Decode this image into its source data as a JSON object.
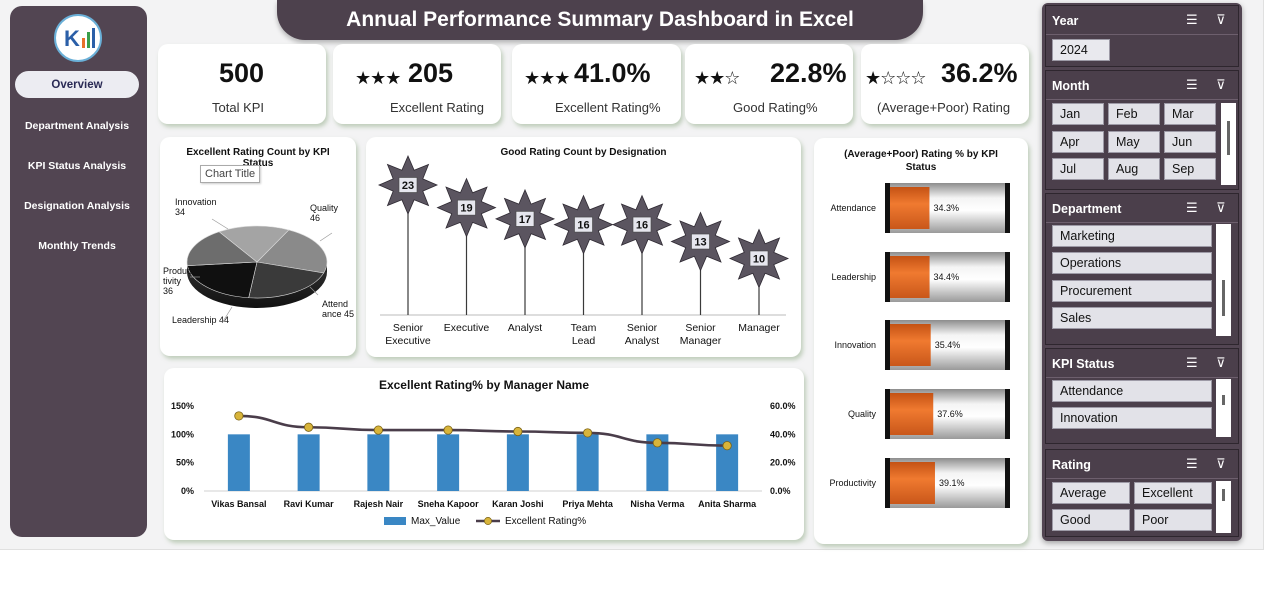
{
  "title": "Annual Performance Summary Dashboard in Excel",
  "nav": {
    "items": [
      "Overview",
      "Department Analysis",
      "KPI Status Analysis",
      "Designation Analysis",
      "Monthly Trends"
    ],
    "active": "Overview"
  },
  "kpis": [
    {
      "stars": "",
      "value": "500",
      "label": "Total KPI"
    },
    {
      "stars": "★★★",
      "value": "205",
      "label": "Excellent Rating"
    },
    {
      "stars": "★★★",
      "value": "41.0%",
      "label": "Excellent Rating%"
    },
    {
      "stars": "★★☆",
      "value": "22.8%",
      "label": "Good Rating%"
    },
    {
      "stars": "★☆☆☆",
      "value": "36.2%",
      "label": "(Average+Poor) Rating"
    }
  ],
  "tooltip": "Chart Title",
  "chart_data": [
    {
      "type": "pie",
      "title": "Excellent Rating Count by KPI Status",
      "categories": [
        "Quality",
        "Attendance",
        "Leadership",
        "Productivity",
        "Innovation"
      ],
      "values": [
        46,
        45,
        44,
        36,
        34
      ],
      "data_labels": [
        "Quality 46",
        "Attend ance 45",
        "Leadership 44",
        "Produc tivity 36",
        "Innovation 34"
      ]
    },
    {
      "type": "bar",
      "title": "Good Rating Count by Designation",
      "categories": [
        "Senior Executive",
        "Executive",
        "Analyst",
        "Team Lead",
        "Senior Analyst",
        "Senior Manager",
        "Manager"
      ],
      "values": [
        23,
        19,
        17,
        16,
        16,
        13,
        10
      ]
    },
    {
      "type": "bar",
      "title": "(Average+Poor) Rating % by KPI Status",
      "categories": [
        "Attendance",
        "Leadership",
        "Innovation",
        "Quality",
        "Productivity"
      ],
      "values": [
        34.3,
        34.4,
        35.4,
        37.6,
        39.1
      ],
      "value_labels": [
        "34.3%",
        "34.4%",
        "35.4%",
        "37.6%",
        "39.1%"
      ]
    },
    {
      "type": "bar",
      "title": "Excellent Rating% by Manager Name",
      "categories": [
        "Vikas Bansal",
        "Ravi Kumar",
        "Rajesh Nair",
        "Sneha Kapoor",
        "Karan Joshi",
        "Priya Mehta",
        "Nisha Verma",
        "Anita Sharma"
      ],
      "series": [
        {
          "name": "Max_Value",
          "type": "bar",
          "axis": "left",
          "values": [
            100,
            100,
            100,
            100,
            100,
            100,
            100,
            100
          ]
        },
        {
          "name": "Excellent Rating%",
          "type": "line",
          "axis": "right",
          "values": [
            53,
            45,
            43,
            43,
            42,
            41,
            34,
            32
          ]
        }
      ],
      "y_left_ticks": [
        "0%",
        "50%",
        "100%",
        "150%"
      ],
      "y_right_ticks": [
        "0.0%",
        "20.0%",
        "40.0%",
        "60.0%"
      ],
      "ylim_left": [
        0,
        150
      ],
      "ylim_right": [
        0,
        60
      ]
    }
  ],
  "slicers": {
    "year": {
      "header": "Year",
      "items": [
        "2024"
      ]
    },
    "month": {
      "header": "Month",
      "items": [
        "Jan",
        "Feb",
        "Mar",
        "Apr",
        "May",
        "Jun",
        "Jul",
        "Aug",
        "Sep"
      ]
    },
    "department": {
      "header": "Department",
      "items": [
        "Marketing",
        "Operations",
        "Procurement",
        "Sales"
      ]
    },
    "kpi_status": {
      "header": "KPI Status",
      "items": [
        "Attendance",
        "Innovation"
      ]
    },
    "rating": {
      "header": "Rating",
      "items": [
        "Average",
        "Excellent",
        "Good",
        "Poor"
      ]
    }
  },
  "colors": {
    "nav_bg": "#524552",
    "orange": "#e8702a",
    "bar_blue": "#3a87c4",
    "line": "#4a3d4a"
  }
}
